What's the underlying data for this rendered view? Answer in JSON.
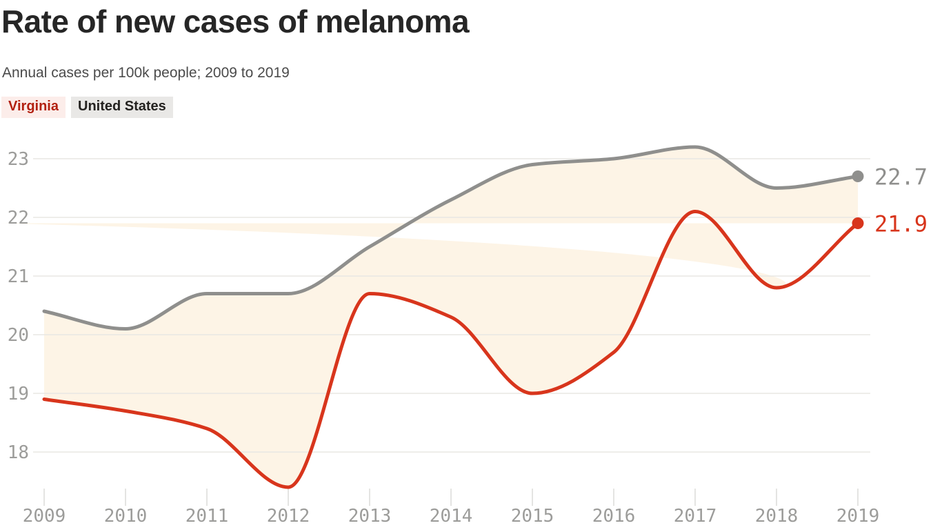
{
  "header": {
    "title": "Rate of new cases of melanoma",
    "subtitle": "Annual cases per 100k people; 2009 to 2019"
  },
  "legend": {
    "items": [
      {
        "label": "Virginia",
        "text_color": "#b2200f",
        "bg_color": "#fcedea"
      },
      {
        "label": "United States",
        "text_color": "#242220",
        "bg_color": "#e9e8e6"
      }
    ]
  },
  "chart_data": {
    "type": "line",
    "title": "Rate of new cases of melanoma",
    "subtitle": "Annual cases per 100k people; 2009 to 2019",
    "x": [
      2009,
      2010,
      2011,
      2012,
      2013,
      2014,
      2015,
      2016,
      2017,
      2018,
      2019
    ],
    "series": [
      {
        "name": "United States",
        "color": "#8f8f8d",
        "values": [
          20.4,
          20.1,
          20.7,
          20.7,
          21.5,
          22.3,
          22.9,
          23.0,
          23.2,
          22.5,
          22.7
        ],
        "end_label": "22.7"
      },
      {
        "name": "Virginia",
        "color": "#d8351c",
        "values": [
          18.9,
          18.7,
          18.4,
          17.4,
          20.7,
          20.3,
          19.0,
          19.7,
          22.1,
          20.8,
          21.9
        ],
        "end_label": "21.9"
      }
    ],
    "y_ticks": [
      18,
      19,
      20,
      21,
      22,
      23
    ],
    "ylim": [
      17.3,
      23.45
    ],
    "grid": true,
    "legend_position": "top-left",
    "curve": "monotone",
    "band_fill": "#fdf4e6",
    "grid_color": "#e8e7e3",
    "tick_color": "#dedddb",
    "axis_text_color": "#9c9c9a"
  }
}
